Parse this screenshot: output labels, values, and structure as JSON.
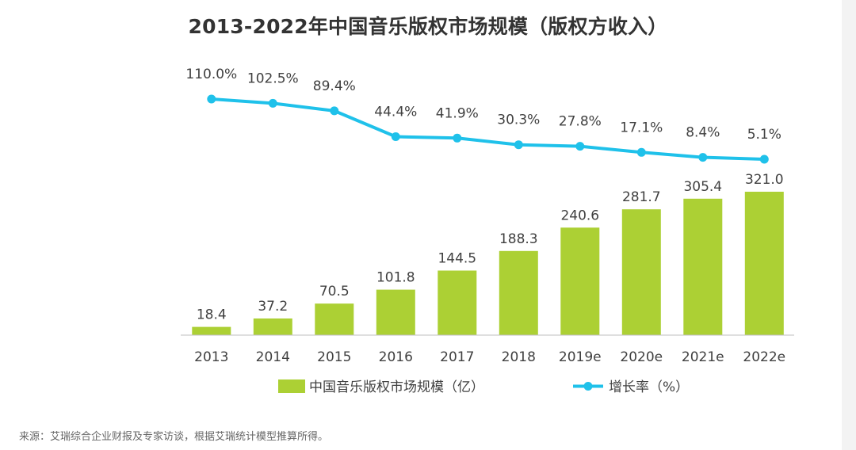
{
  "chart_data": {
    "type": "bar+line",
    "title": "2013-2022年中国音乐版权市场规模（版权方收入）",
    "categories": [
      "2013",
      "2014",
      "2015",
      "2016",
      "2017",
      "2018",
      "2019e",
      "2020e",
      "2021e",
      "2022e"
    ],
    "series": [
      {
        "name": "中国音乐版权市场规模（亿）",
        "type": "bar",
        "values": [
          18.4,
          37.2,
          70.5,
          101.8,
          144.5,
          188.3,
          240.6,
          281.7,
          305.4,
          321.0
        ],
        "labels": [
          "18.4",
          "37.2",
          "70.5",
          "101.8",
          "144.5",
          "188.3",
          "240.6",
          "281.7",
          "305.4",
          "321.0"
        ],
        "ylim": [
          0,
          350
        ]
      },
      {
        "name": "增长率（%）",
        "type": "line",
        "values": [
          110.0,
          102.5,
          89.4,
          44.4,
          41.9,
          30.3,
          27.8,
          17.1,
          8.4,
          5.1
        ],
        "labels": [
          "110.0%",
          "102.5%",
          "89.4%",
          "44.4%",
          "41.9%",
          "30.3%",
          "27.8%",
          "17.1%",
          "8.4%",
          "5.1%"
        ],
        "ylim": [
          0,
          120
        ]
      }
    ],
    "legend": "bottom-center",
    "grid": false,
    "colors": {
      "bar": "#acd034",
      "line": "#1fc1ea",
      "text": "#404040",
      "axis": "#bfbfbf"
    }
  },
  "source": "来源：艾瑞综合企业财报及专家访谈，根据艾瑞统计模型推算所得。"
}
